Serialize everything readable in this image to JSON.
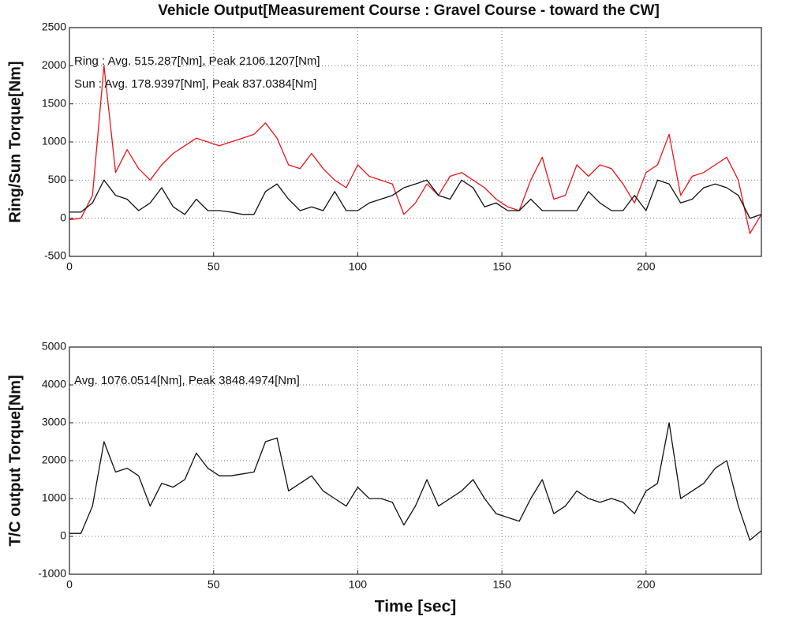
{
  "chart_data": [
    {
      "type": "line",
      "title": "Vehicle Output[Measurement Course : Gravel Course - toward the CW]",
      "ylabel": "Ring/Sun Torque[Nm]",
      "annotations": [
        {
          "text": "Ring : Avg. 515.287[Nm],  Peak  2106.1207[Nm]",
          "color": "#e8141b"
        },
        {
          "text": "Sun : Avg. 178.9397[Nm],  Peak  837.0384[Nm]",
          "color": "#222222"
        }
      ],
      "x": [
        0,
        4,
        8,
        12,
        16,
        20,
        24,
        28,
        32,
        36,
        40,
        44,
        48,
        52,
        56,
        60,
        64,
        68,
        72,
        76,
        80,
        84,
        88,
        92,
        96,
        100,
        104,
        108,
        112,
        116,
        120,
        124,
        128,
        132,
        136,
        140,
        144,
        148,
        152,
        156,
        160,
        164,
        168,
        172,
        176,
        180,
        184,
        188,
        192,
        196,
        200,
        204,
        208,
        212,
        216,
        220,
        224,
        228,
        232,
        236,
        240
      ],
      "series": [
        {
          "color": "#e8141b",
          "values": [
            -20,
            0,
            300,
            2000,
            600,
            900,
            650,
            500,
            700,
            850,
            950,
            1050,
            1000,
            950,
            1000,
            1050,
            1100,
            1250,
            1050,
            700,
            650,
            850,
            650,
            500,
            400,
            700,
            550,
            500,
            450,
            50,
            200,
            450,
            300,
            550,
            600,
            500,
            400,
            250,
            150,
            100,
            500,
            800,
            250,
            300,
            700,
            550,
            700,
            650,
            450,
            200,
            600,
            700,
            1100,
            300,
            550,
            600,
            700,
            800,
            500,
            -200,
            50
          ]
        },
        {
          "color": "#111111",
          "values": [
            80,
            80,
            200,
            500,
            300,
            250,
            100,
            200,
            400,
            150,
            50,
            250,
            100,
            100,
            80,
            50,
            50,
            350,
            450,
            250,
            100,
            150,
            100,
            350,
            100,
            100,
            200,
            250,
            300,
            400,
            450,
            500,
            300,
            250,
            500,
            400,
            150,
            200,
            100,
            100,
            250,
            100,
            100,
            100,
            100,
            350,
            200,
            100,
            100,
            300,
            100,
            500,
            450,
            200,
            250,
            400,
            450,
            400,
            300,
            0,
            50
          ]
        }
      ],
      "xlim": [
        0,
        240
      ],
      "xticks": [
        0,
        50,
        100,
        150,
        200
      ],
      "ylim": [
        -500,
        2500
      ],
      "yticks": [
        -500,
        0,
        500,
        1000,
        1500,
        2000,
        2500
      ],
      "grid": true
    },
    {
      "type": "line",
      "ylabel": "T/C output Torque[Nm]",
      "xlabel": "Time [sec]",
      "annotations": [
        {
          "text": "Avg. 1076.0514[Nm],  Peak  3848.4974[Nm]",
          "color": "#222222"
        }
      ],
      "x": [
        0,
        4,
        8,
        12,
        16,
        20,
        24,
        28,
        32,
        36,
        40,
        44,
        48,
        52,
        56,
        60,
        64,
        68,
        72,
        76,
        80,
        84,
        88,
        92,
        96,
        100,
        104,
        108,
        112,
        116,
        120,
        124,
        128,
        132,
        136,
        140,
        144,
        148,
        152,
        156,
        160,
        164,
        168,
        172,
        176,
        180,
        184,
        188,
        192,
        196,
        200,
        204,
        208,
        212,
        216,
        220,
        224,
        228,
        232,
        236,
        240
      ],
      "values": [
        80,
        80,
        800,
        2500,
        1700,
        1800,
        1600,
        800,
        1400,
        1300,
        1500,
        2200,
        1800,
        1600,
        1600,
        1650,
        1700,
        2500,
        2600,
        1200,
        1400,
        1600,
        1200,
        1000,
        800,
        1300,
        1000,
        1000,
        900,
        300,
        800,
        1500,
        800,
        1000,
        1200,
        1500,
        1000,
        600,
        500,
        400,
        1000,
        1500,
        600,
        800,
        1200,
        1000,
        900,
        1000,
        900,
        600,
        1200,
        1400,
        3000,
        1000,
        1200,
        1400,
        1800,
        2000,
        800,
        -100,
        150
      ],
      "color": "#111111",
      "xlim": [
        0,
        240
      ],
      "xticks": [
        0,
        50,
        100,
        150,
        200
      ],
      "ylim": [
        -1000,
        5000
      ],
      "yticks": [
        -1000,
        0,
        1000,
        2000,
        3000,
        4000,
        5000
      ],
      "grid": true
    }
  ]
}
